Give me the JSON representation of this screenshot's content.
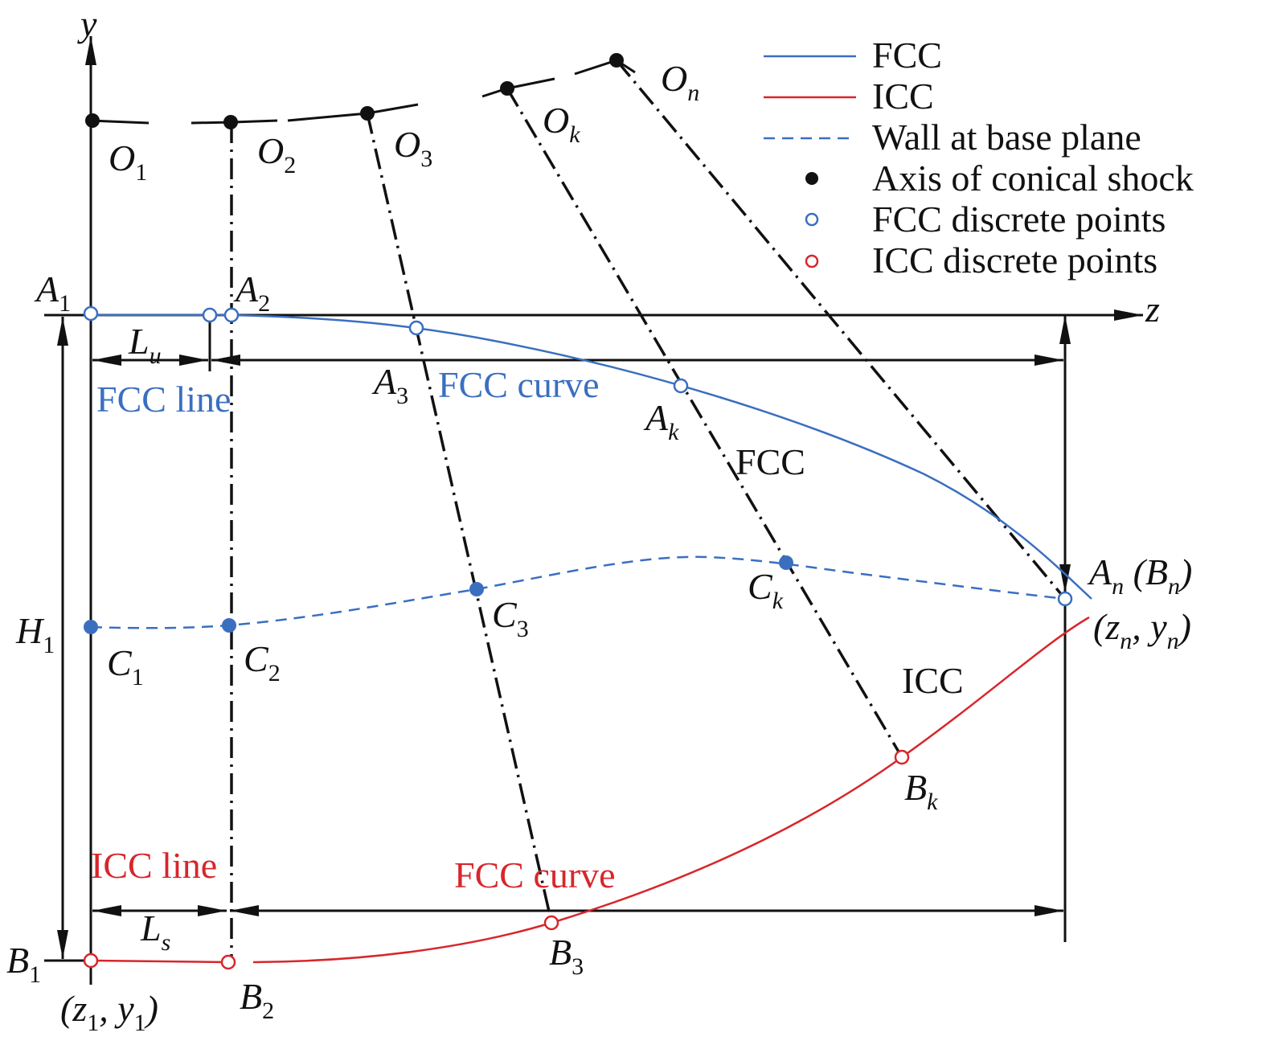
{
  "labels": {
    "y": [
      {
        "base": "y"
      }
    ],
    "z": [
      {
        "base": "z"
      }
    ],
    "O1": [
      {
        "base": "O",
        "sub": "1"
      }
    ],
    "O2": [
      {
        "base": "O",
        "sub": "2"
      }
    ],
    "O3": [
      {
        "base": "O",
        "sub": "3"
      }
    ],
    "Ok": [
      {
        "base": "O",
        "sub": "k"
      }
    ],
    "On": [
      {
        "base": "O",
        "sub": "n"
      }
    ],
    "A1": [
      {
        "base": "A",
        "sub": "1"
      }
    ],
    "A2": [
      {
        "base": "A",
        "sub": "2"
      }
    ],
    "A3": [
      {
        "base": "A",
        "sub": "3"
      }
    ],
    "Ak": [
      {
        "base": "A",
        "sub": "k"
      }
    ],
    "An_Bn": [
      {
        "base": "A",
        "sub": "n"
      },
      {
        "base": " (B",
        "sub": "n"
      },
      {
        "base": ")"
      }
    ],
    "zn_yn": [
      {
        "base": "(z",
        "sub": "n"
      },
      {
        "base": ", y",
        "sub": "n"
      },
      {
        "base": ")"
      }
    ],
    "Lu": [
      {
        "base": "L",
        "sub": "u"
      }
    ],
    "Ls": [
      {
        "base": "L",
        "sub": "s"
      }
    ],
    "H1": [
      {
        "base": "H",
        "sub": "1"
      }
    ],
    "C1": [
      {
        "base": "C",
        "sub": "1"
      }
    ],
    "C2": [
      {
        "base": "C",
        "sub": "2"
      }
    ],
    "C3": [
      {
        "base": "C",
        "sub": "3"
      }
    ],
    "Ck": [
      {
        "base": "C",
        "sub": "k"
      }
    ],
    "B1": [
      {
        "base": "B",
        "sub": "1"
      }
    ],
    "B2": [
      {
        "base": "B",
        "sub": "2"
      }
    ],
    "B3": [
      {
        "base": "B",
        "sub": "3"
      }
    ],
    "Bk": [
      {
        "base": "B",
        "sub": "k"
      }
    ],
    "z1_y1": [
      {
        "base": "(z",
        "sub": "1"
      },
      {
        "base": ", y",
        "sub": "1"
      },
      {
        "base": ")"
      }
    ]
  },
  "annotations": {
    "fcc_line": "FCC line",
    "fcc_curve_upper": "FCC curve",
    "fcc_region": "FCC",
    "icc_region": "ICC",
    "icc_line": "ICC line",
    "fcc_curve_lower": "FCC curve"
  },
  "legend": [
    "FCC",
    "ICC",
    "Wall at base plane",
    "Axis of conical shock",
    "FCC discrete points",
    "ICC discrete points"
  ]
}
